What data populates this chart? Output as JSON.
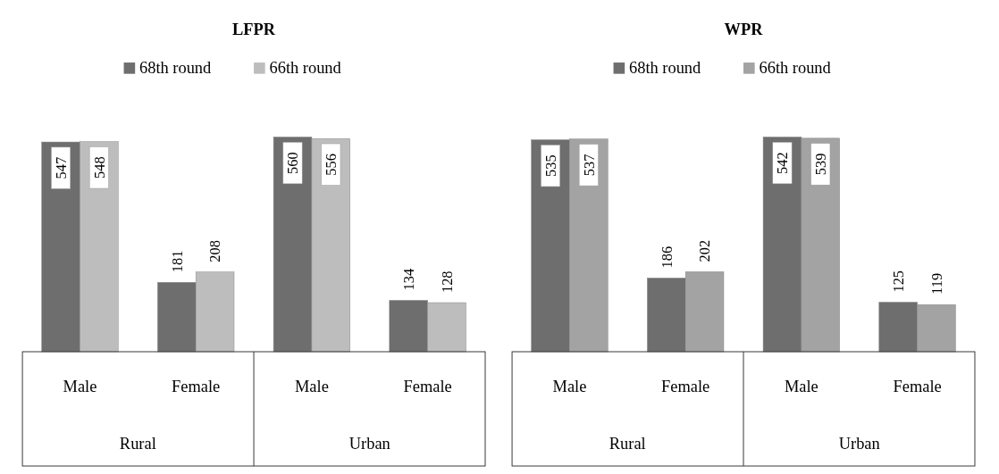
{
  "chart_data": [
    {
      "type": "bar",
      "title": "LFPR",
      "categories": [
        "Male",
        "Female",
        "Male",
        "Female"
      ],
      "series": [
        {
          "name": "68th round",
          "color": "#6e6e6e",
          "values": [
            547,
            181,
            560,
            134
          ]
        },
        {
          "name": "66th round",
          "color": "#bdbdbd",
          "values": [
            548,
            208,
            556,
            128
          ]
        }
      ],
      "data_labels": true,
      "legend": "top",
      "annotations": [
        "Rural",
        "Urban"
      ]
    },
    {
      "type": "bar",
      "title": "WPR",
      "categories": [
        "Male",
        "Female",
        "Male",
        "Female"
      ],
      "series": [
        {
          "name": "68th round",
          "color": "#6e6e6e",
          "values": [
            535,
            186,
            542,
            125
          ]
        },
        {
          "name": "66th round",
          "color": "#a3a3a3",
          "values": [
            537,
            202,
            539,
            119
          ]
        }
      ],
      "data_labels": true,
      "legend": "top",
      "annotations": [
        "Rural",
        "Urban"
      ]
    }
  ]
}
